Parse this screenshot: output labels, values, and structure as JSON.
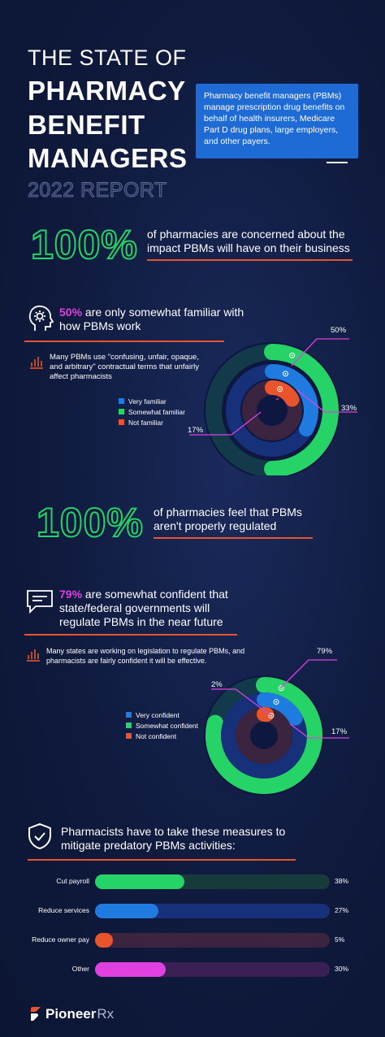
{
  "header": {
    "line1": "THE STATE OF",
    "line2": "PHARMACY",
    "line3": "BENEFIT",
    "line4": "MANAGERS",
    "line5": "2022 REPORT"
  },
  "info_box": "Pharmacy benefit managers (PBMs) manage prescription drug benefits on behalf of health insurers, Medicare Part D drug plans, large employers, and other payers.",
  "stat1": {
    "value": "100%",
    "text": "of pharmacies are concerned about the impact PBMs will have on their business"
  },
  "section2": {
    "pct": "50%",
    "title_rest": " are only somewhat familiar with how PBMs work",
    "note": "Many PBMs use \"confusing, unfair, opaque, and arbitrary\" contractual terms that unfairly affect pharmacists",
    "icon": "head-gear-icon",
    "note_icon": "bar-chart-icon"
  },
  "stat2": {
    "value": "100%",
    "text": "of pharmacies feel that PBMs aren't properly regulated"
  },
  "section4": {
    "pct": "79%",
    "title_rest": " are somewhat confident that state/federal governments will regulate PBMs in the near future",
    "note": "Many states are working on legislation to regulate PBMs, and pharmacists are fairly confident it will be effective.",
    "icon": "speech-bubble-icon",
    "note_icon": "bar-chart-icon"
  },
  "section5": {
    "title": "Pharmacists have to take these measures to mitigate predatory PBMs activities:",
    "icon": "shield-check-icon"
  },
  "logo": {
    "part1": "Pioneer",
    "part2": "Rx"
  },
  "colors": {
    "green": "#25d366",
    "blue": "#1f7be0",
    "orange": "#e8542b",
    "pink": "#e040e0"
  },
  "chart_data": [
    {
      "type": "pie",
      "title": "",
      "series": [
        {
          "name": "Very familiar",
          "value": 33,
          "label": "33%",
          "color": "#1f7be0"
        },
        {
          "name": "Somewhat familiar",
          "value": 50,
          "label": "50%",
          "color": "#25d366"
        },
        {
          "name": "Not familiar",
          "value": 17,
          "label": "17%",
          "color": "#e8542b"
        }
      ]
    },
    {
      "type": "pie",
      "title": "",
      "series": [
        {
          "name": "Very confident",
          "value": 17,
          "label": "17%",
          "color": "#1f7be0"
        },
        {
          "name": "Somewhat confident",
          "value": 79,
          "label": "79%",
          "color": "#25d366"
        },
        {
          "name": "Not confident",
          "value": 2,
          "label": "2%",
          "color": "#e8542b"
        }
      ]
    },
    {
      "type": "bar",
      "orientation": "horizontal",
      "categories": [
        "Cut payroll",
        "Reduce services",
        "Reduce owner pay",
        "Other"
      ],
      "values": [
        38,
        27,
        5,
        30
      ],
      "value_labels": [
        "38%",
        "27%",
        "5%",
        "30%"
      ],
      "colors": [
        "#25d366",
        "#1f7be0",
        "#e8542b",
        "#e040e0"
      ],
      "xlim": [
        0,
        100
      ]
    }
  ]
}
